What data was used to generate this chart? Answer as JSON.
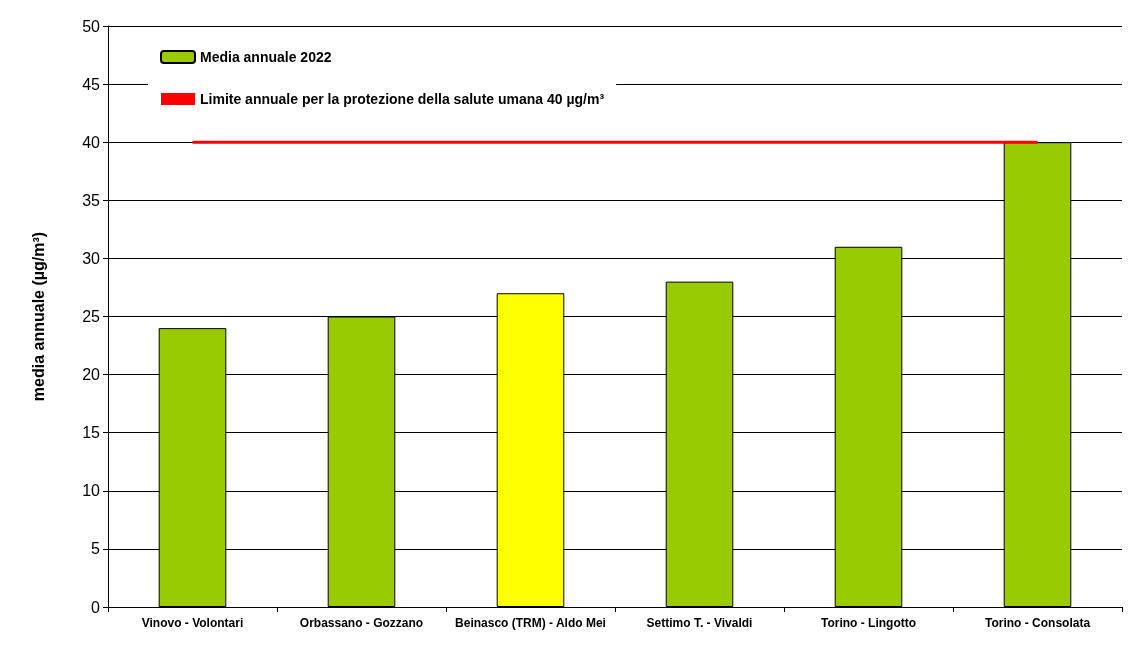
{
  "chart_data": {
    "type": "bar",
    "ylabel": "media annuale (µg/m³)",
    "categories": [
      "Vinovo - Volontari",
      "Orbassano - Gozzano",
      "Beinasco (TRM) - Aldo Mei",
      "Settimo T. - Vivaldi",
      "Torino - Lingotto",
      "Torino - Consolata"
    ],
    "series": [
      {
        "name": "Media annuale 2022",
        "color": "#99cc00",
        "colors": [
          "#99cc00",
          "#99cc00",
          "#ffff00",
          "#99cc00",
          "#99cc00",
          "#99cc00"
        ],
        "values": [
          24,
          25,
          27,
          28,
          31,
          40
        ]
      }
    ],
    "ref_lines": [
      {
        "axis": "y",
        "value": 40,
        "label": "Limite annuale per la protezione della salute umana 40 µg/m³",
        "color": "#ff0000",
        "line_style": "solid"
      }
    ],
    "ylim": [
      0,
      50
    ],
    "yticks": [
      0,
      5,
      10,
      15,
      20,
      25,
      30,
      35,
      40,
      45,
      50
    ],
    "grid": "y",
    "legend": "top left"
  }
}
